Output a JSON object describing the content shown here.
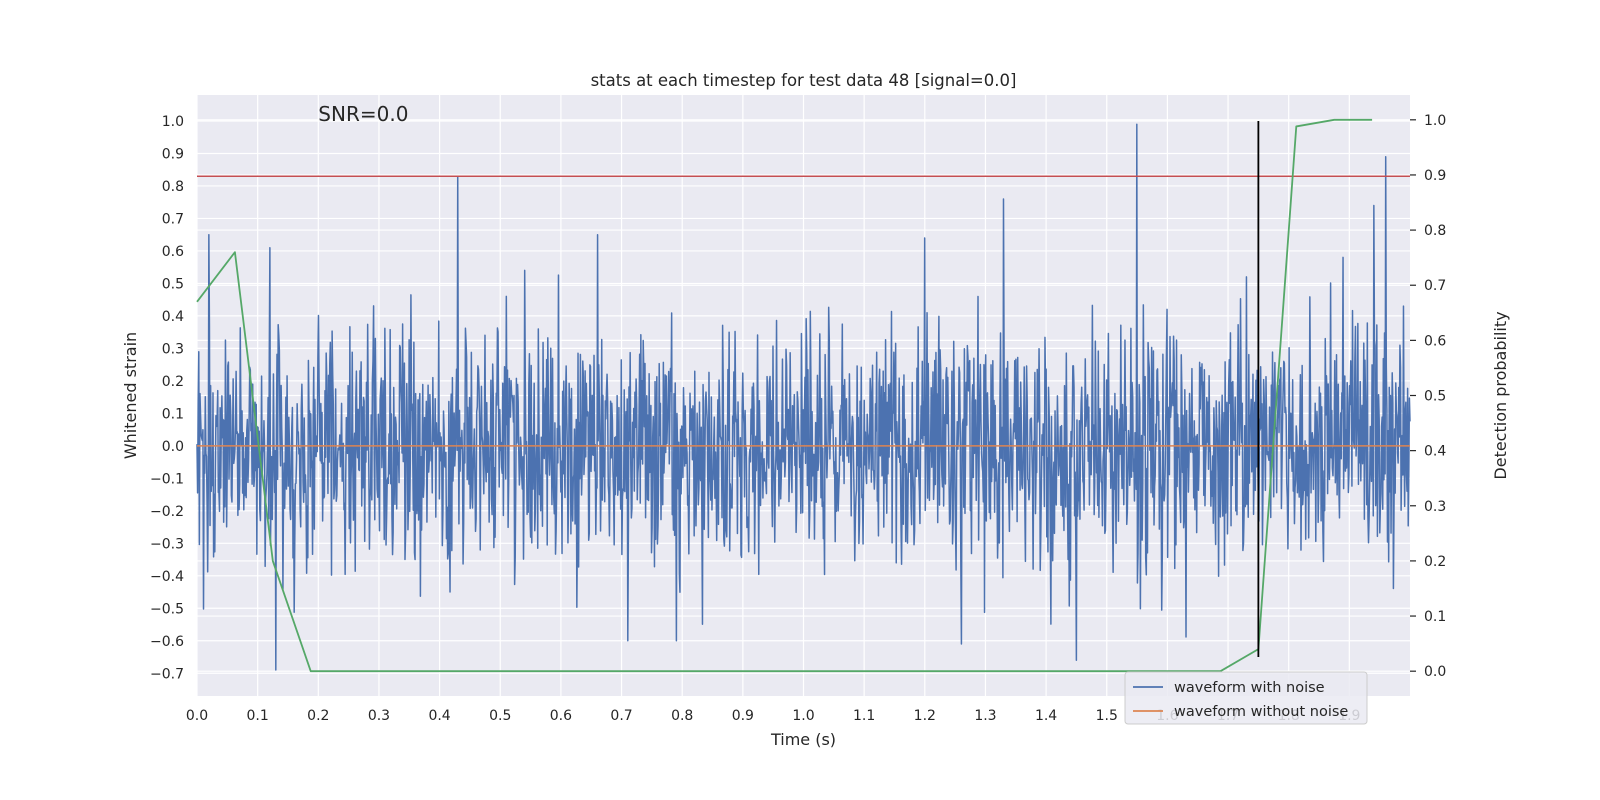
{
  "chart_data": {
    "type": "line",
    "title": "stats at each timestep for test data 48 [signal=0.0]",
    "xlabel": "Time (s)",
    "ylabel": "Whitened strain",
    "y2label": "Detection probability",
    "xlim": [
      0.0,
      2.0
    ],
    "ylim": [
      -0.77,
      1.08
    ],
    "y2lim": [
      -0.045,
      1.045
    ],
    "xticks": [
      0.0,
      0.1,
      0.2,
      0.3,
      0.4,
      0.5,
      0.6,
      0.7,
      0.8,
      0.9,
      1.0,
      1.1,
      1.2,
      1.3,
      1.4,
      1.5,
      1.6,
      1.7,
      1.8,
      1.9
    ],
    "xtick_labels": [
      "0.0",
      "0.1",
      "0.2",
      "0.3",
      "0.4",
      "0.5",
      "0.6",
      "0.7",
      "0.8",
      "0.9",
      "1.0",
      "1.1",
      "1.2",
      "1.3",
      "1.4",
      "1.5",
      "1.6",
      "1.7",
      "1.8",
      "1.9"
    ],
    "yticks": [
      -0.7,
      -0.6,
      -0.5,
      -0.4,
      -0.3,
      -0.2,
      -0.1,
      0.0,
      0.1,
      0.2,
      0.3,
      0.4,
      0.5,
      0.6,
      0.7,
      0.8,
      0.9,
      1.0
    ],
    "ytick_labels": [
      "−0.7",
      "−0.6",
      "−0.5",
      "−0.4",
      "−0.3",
      "−0.2",
      "−0.1",
      "0.0",
      "0.1",
      "0.2",
      "0.3",
      "0.4",
      "0.5",
      "0.6",
      "0.7",
      "0.8",
      "0.9",
      "1.0"
    ],
    "y2ticks": [
      0.0,
      0.1,
      0.2,
      0.3,
      0.4,
      0.5,
      0.6,
      0.7,
      0.8,
      0.9,
      1.0
    ],
    "y2tick_labels": [
      "0.0",
      "0.1",
      "0.2",
      "0.3",
      "0.4",
      "0.5",
      "0.6",
      "0.7",
      "0.8",
      "0.9",
      "1.0"
    ],
    "grid": true,
    "annotation": "SNR=0.0",
    "annotation_position": {
      "x": 0.2,
      "y": 1.0
    },
    "threshold_line": {
      "y": 0.83,
      "x_range": [
        0.0,
        2.0
      ],
      "color": "#c44e52"
    },
    "marker_line": {
      "x": 1.75,
      "y_range": [
        -0.65,
        1.0
      ],
      "color": "#000000"
    },
    "series": [
      {
        "name": "waveform with noise",
        "color": "#4c72b0",
        "axis": "left",
        "kind": "noise",
        "sample_count": 2048,
        "spread": 0.18,
        "peaks": [
          {
            "x": 0.02,
            "y": 0.65
          },
          {
            "x": 0.12,
            "y": 0.61
          },
          {
            "x": 0.13,
            "y": -0.69
          },
          {
            "x": 0.43,
            "y": 0.83
          },
          {
            "x": 0.54,
            "y": 0.54
          },
          {
            "x": 0.66,
            "y": 0.65
          },
          {
            "x": 0.71,
            "y": -0.6
          },
          {
            "x": 0.79,
            "y": -0.6
          },
          {
            "x": 1.2,
            "y": 0.64
          },
          {
            "x": 1.26,
            "y": -0.61
          },
          {
            "x": 1.33,
            "y": 0.76
          },
          {
            "x": 1.45,
            "y": -0.66
          },
          {
            "x": 1.55,
            "y": 0.99
          },
          {
            "x": 1.89,
            "y": 0.58
          },
          {
            "x": 1.94,
            "y": 0.74
          },
          {
            "x": 1.96,
            "y": 0.89
          },
          {
            "x": 1.73,
            "y": 0.52
          }
        ]
      },
      {
        "name": "waveform without noise",
        "color": "#dd8452",
        "axis": "left",
        "x": [
          0.0,
          2.0
        ],
        "y": [
          0.0,
          0.0
        ]
      },
      {
        "name": "detection probability",
        "color": "#55a868",
        "axis": "right",
        "x": [
          0.0,
          0.0625,
          0.125,
          0.1875,
          0.25,
          0.3125,
          0.375,
          0.4375,
          0.5,
          0.5625,
          0.625,
          0.6875,
          0.75,
          0.8125,
          0.875,
          0.9375,
          1.0,
          1.0625,
          1.125,
          1.1875,
          1.25,
          1.3125,
          1.375,
          1.4375,
          1.5,
          1.5625,
          1.625,
          1.6875,
          1.75,
          1.8125,
          1.875,
          1.9375
        ],
        "y": [
          0.67,
          0.76,
          0.2,
          0.0,
          0.0,
          0.0,
          0.0,
          0.0,
          0.0,
          0.0,
          0.0,
          0.0,
          0.0,
          0.0,
          0.0,
          0.0,
          0.0,
          0.0,
          0.0,
          0.0,
          0.0,
          0.0,
          0.0,
          0.0,
          0.0,
          0.0,
          0.0,
          0.0,
          0.04,
          0.988,
          1.0,
          1.0
        ]
      }
    ],
    "legend": {
      "placement": "bottom-right",
      "entries": [
        {
          "label": "waveform with noise",
          "color": "#4c72b0"
        },
        {
          "label": "waveform without noise",
          "color": "#dd8452"
        }
      ]
    },
    "colors": {
      "plot_background": "#eaeaf2",
      "grid": "#ffffff",
      "text": "#262626"
    }
  }
}
